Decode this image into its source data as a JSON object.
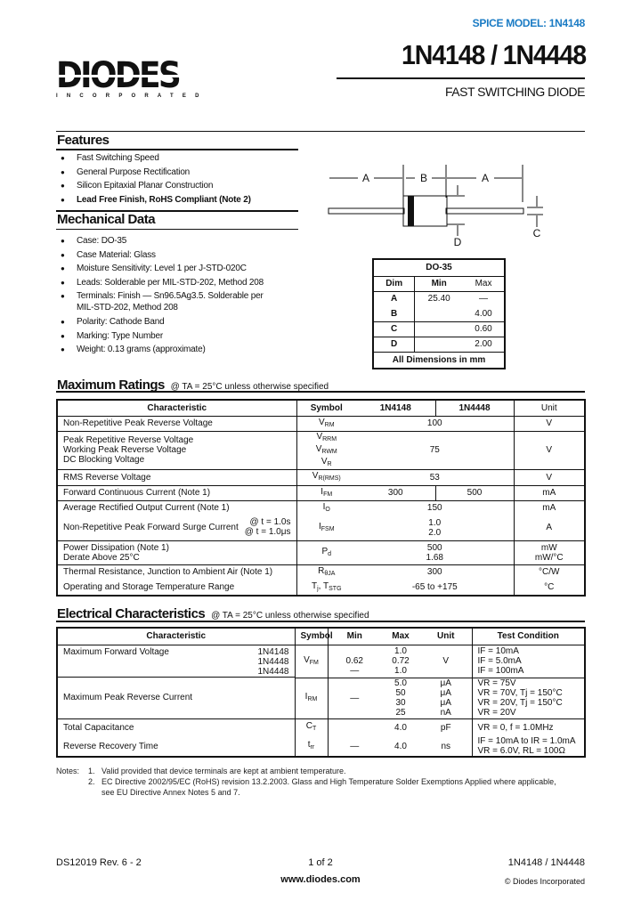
{
  "header": {
    "spice_model": "SPICE MODEL:  1N4148",
    "title": "1N4148 / 1N4448",
    "subtitle": "FAST SWITCHING DIODE",
    "logo_text": "DIODES",
    "logo_subtext": "INCORPORATED",
    "spice_color": "#1a7bc4"
  },
  "features": {
    "heading": "Features",
    "items": [
      {
        "text": "Fast Switching Speed",
        "bold": false
      },
      {
        "text": "General Purpose Rectification",
        "bold": false
      },
      {
        "text": "Silicon Epitaxial Planar Construction",
        "bold": false
      },
      {
        "text": "Lead Free Finish, RoHS Compliant (Note 2)",
        "bold": true
      }
    ]
  },
  "mechanical": {
    "heading": "Mechanical Data",
    "items": [
      "Case: DO-35",
      "Case Material:  Glass",
      "Moisture Sensitivity:  Level 1 per J-STD-020C",
      "Leads: Solderable per MIL-STD-202, Method 208",
      "Terminals: Finish — Sn96.5Ag3.5. Solderable per\nMIL-STD-202, Method 208",
      "Polarity: Cathode Band",
      "Marking: Type Number",
      "Weight: 0.13 grams (approximate)"
    ]
  },
  "diagram": {
    "labels": [
      "A",
      "B",
      "A",
      "C",
      "D"
    ]
  },
  "dim_table": {
    "title": "DO-35",
    "headers": [
      "Dim",
      "Min",
      "Max"
    ],
    "rows": [
      [
        "A",
        "25.40",
        "—"
      ],
      [
        "B",
        "",
        "4.00"
      ],
      [
        "C",
        "",
        "0.60"
      ],
      [
        "D",
        "",
        "2.00"
      ]
    ],
    "footer": "All Dimensions in mm"
  },
  "max_ratings": {
    "heading": "Maximum Ratings",
    "condition": "@ TA = 25°C unless otherwise specified",
    "headers": [
      "Characteristic",
      "Symbol",
      "1N4148",
      "1N4448",
      "Unit"
    ],
    "rows": [
      {
        "char": "Non-Repetitive Peak Reverse Voltage",
        "sym": [
          [
            "V",
            "RM"
          ]
        ],
        "value": "100",
        "unit": "V"
      },
      {
        "char": "Peak Repetitive Reverse Voltage\nWorking Peak Reverse Voltage\nDC Blocking Voltage",
        "sym": [
          [
            "V",
            "RRM"
          ],
          [
            "V",
            "RWM"
          ],
          [
            "V",
            "R"
          ]
        ],
        "value": "75",
        "unit": "V"
      },
      {
        "char": "RMS Reverse Voltage",
        "sym": [
          [
            "V",
            "R(RMS)"
          ]
        ],
        "value": "53",
        "unit": "V"
      },
      {
        "char": "Forward Continuous Current (Note 1)",
        "sym": [
          [
            "I",
            "FM"
          ]
        ],
        "v1": "300",
        "v2": "500",
        "unit": "mA"
      },
      {
        "char": "Average Rectified Output Current (Note 1)",
        "sym": [
          [
            "I",
            "O"
          ]
        ],
        "value": "150",
        "unit": "mA",
        "noborder": true
      },
      {
        "char": "Non-Repetitive Peak Forward Surge Current",
        "cond": "@ t = 1.0s\n@ t = 1.0μs",
        "sym": [
          [
            "I",
            "FSM"
          ]
        ],
        "value": "1.0\n2.0",
        "unit": "A"
      },
      {
        "char": "Power Dissipation (Note 1)\n    Derate Above 25°C",
        "sym": [
          [
            "P",
            "d"
          ]
        ],
        "value": "500\n1.68",
        "unit": "mW\nmW/°C"
      },
      {
        "char": "Thermal Resistance, Junction to Ambient Air (Note 1)",
        "sym": [
          [
            "R",
            "θJA"
          ]
        ],
        "value": "300",
        "unit": "°C/W",
        "noborder": true
      },
      {
        "char": "Operating and Storage Temperature Range",
        "sym": [
          [
            "T",
            "j"
          ],
          [
            ", T",
            "STG"
          ]
        ],
        "inline": true,
        "value": "-65 to +175",
        "unit": "°C"
      }
    ]
  },
  "electrical": {
    "heading": "Electrical Characteristics",
    "condition": "@ TA = 25°C unless otherwise specified",
    "headers": [
      "Characteristic",
      "Symbol",
      "Min",
      "Max",
      "Unit",
      "Test Condition"
    ],
    "rows": [
      {
        "char": "Maximum Forward Voltage",
        "parts": "1N4148\n1N4448\n1N4448",
        "sym": [
          "V",
          "FM"
        ],
        "min": "\n0.62\n—",
        "max": "1.0\n0.72\n1.0",
        "unit": "V",
        "test": "IF = 10mA\nIF = 5.0mA\nIF = 100mA"
      },
      {
        "char": "Maximum Peak Reverse Current",
        "sym": [
          "I",
          "RM"
        ],
        "min": "—",
        "max": "5.0\n50\n30\n25",
        "unit": "μA\nμA\nμA\nnA",
        "test": "VR = 75V\nVR = 70V, Tj = 150°C\nVR = 20V, Tj = 150°C\nVR = 20V"
      },
      {
        "char": "Total Capacitance",
        "sym": [
          "C",
          "T"
        ],
        "min": "",
        "max": "4.0",
        "unit": "pF",
        "test": "VR = 0, f = 1.0MHz",
        "noborder": true
      },
      {
        "char": "Reverse Recovery Time",
        "sym": [
          "t",
          "rr"
        ],
        "min": "—",
        "max": "4.0",
        "unit": "ns",
        "test": "IF = 10mA to IR = 1.0mA\nVR = 6.0V, RL = 100Ω"
      }
    ]
  },
  "notes": {
    "label": "Notes:",
    "items": [
      "1.   Valid provided that device terminals are kept at ambient temperature.",
      "2.   EC Directive 2002/95/EC (RoHS) revision 13.2.2003. Glass and High Temperature Solder Exemptions Applied where applicable,\n      see EU Directive Annex Notes 5 and 7."
    ]
  },
  "footer": {
    "doc_id": "DS12019 Rev. 6 - 2",
    "page": "1 of 2",
    "website": "www.diodes.com",
    "part": "1N4148 / 1N4448",
    "copyright": "© Diodes Incorporated"
  }
}
